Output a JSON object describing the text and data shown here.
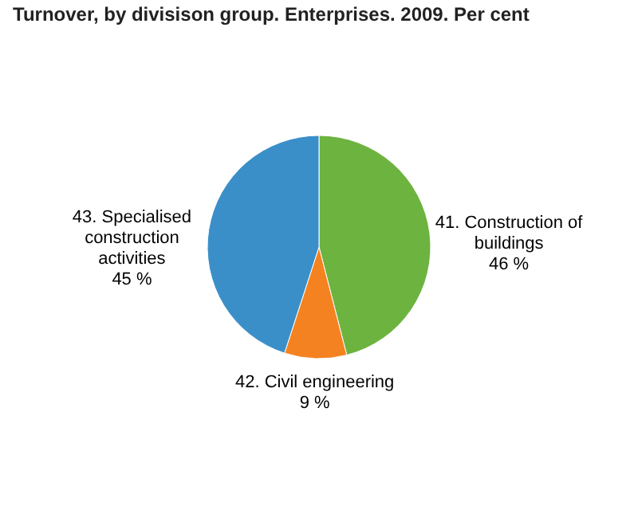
{
  "chart_data": {
    "type": "pie",
    "title": "Turnover, by divisison group. Enterprises. 2009. Per cent",
    "categories": [
      "41. Construction of buildings",
      "42. Civil engineering",
      "43. Specialised construction activities"
    ],
    "values": [
      46,
      9,
      45
    ],
    "colors": [
      "#6db33f",
      "#f58220",
      "#3a8fc8"
    ],
    "value_labels": [
      "46 %",
      "9 %",
      "45 %"
    ]
  }
}
